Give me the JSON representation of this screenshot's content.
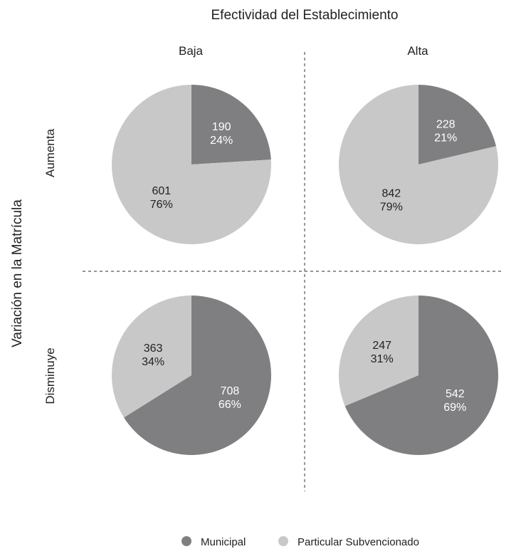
{
  "chart_data": {
    "type": "pie",
    "title": "Efectividad del Establecimiento",
    "ylabel": "Variación en la Matrícula",
    "columns": [
      "Baja",
      "Alta"
    ],
    "rows": [
      "Aumenta",
      "Disminuye"
    ],
    "colors": {
      "Municipal": "#7f7f81",
      "Particular Subvencionado": "#c8c8c8"
    },
    "label_colors": {
      "Municipal": "#ffffff",
      "Particular Subvencionado": "#222222"
    },
    "legend": {
      "placement": "bottom",
      "entries": [
        "Municipal",
        "Particular Subvencionado"
      ]
    },
    "panels": [
      {
        "row": "Aumenta",
        "column": "Baja",
        "slices": [
          {
            "series": "Municipal",
            "value": 190,
            "pct_label": "24%"
          },
          {
            "series": "Particular Subvencionado",
            "value": 601,
            "pct_label": "76%"
          }
        ]
      },
      {
        "row": "Aumenta",
        "column": "Alta",
        "slices": [
          {
            "series": "Municipal",
            "value": 228,
            "pct_label": "21%"
          },
          {
            "series": "Particular Subvencionado",
            "value": 842,
            "pct_label": "79%"
          }
        ]
      },
      {
        "row": "Disminuye",
        "column": "Baja",
        "slices": [
          {
            "series": "Municipal",
            "value": 708,
            "pct_label": "66%"
          },
          {
            "series": "Particular Subvencionado",
            "value": 363,
            "pct_label": "34%"
          }
        ]
      },
      {
        "row": "Disminuye",
        "column": "Alta",
        "slices": [
          {
            "series": "Municipal",
            "value": 542,
            "pct_label": "69%"
          },
          {
            "series": "Particular Subvencionado",
            "value": 247,
            "pct_label": "31%"
          }
        ]
      }
    ]
  }
}
